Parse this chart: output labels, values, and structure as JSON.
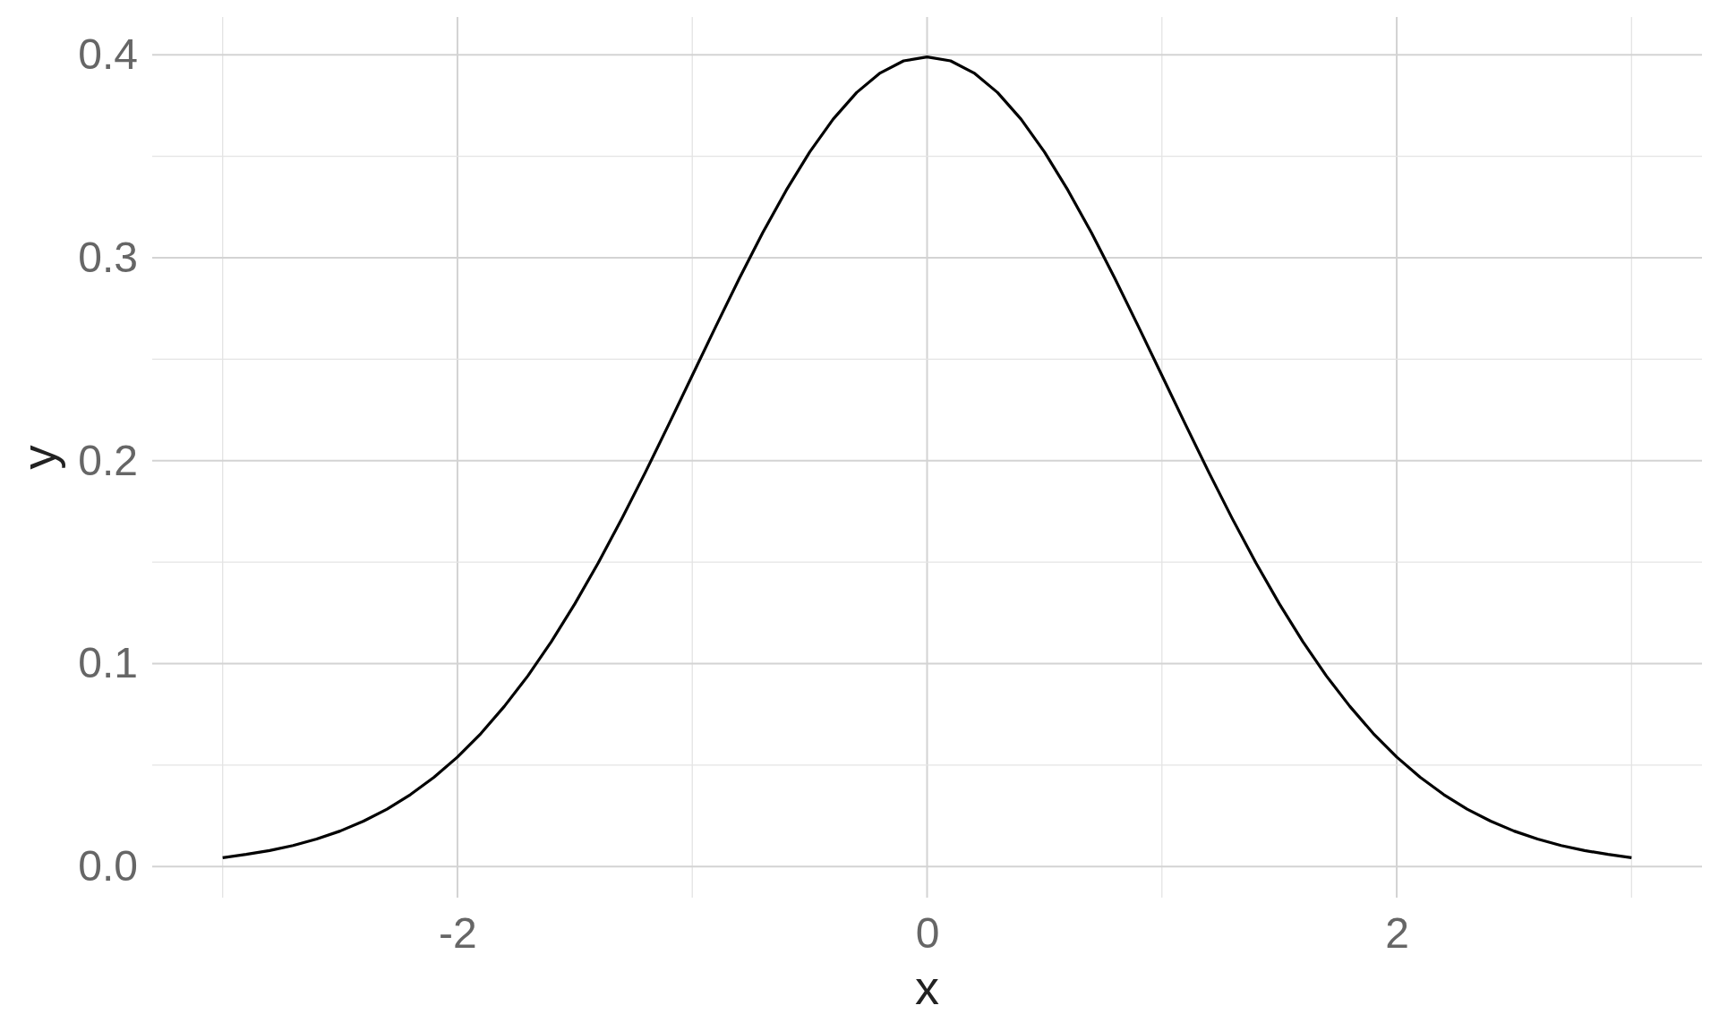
{
  "chart_data": {
    "type": "line",
    "xlabel": "x",
    "ylabel": "y",
    "x": [
      -3,
      -2.9,
      -2.8,
      -2.7,
      -2.6,
      -2.5,
      -2.4,
      -2.3,
      -2.2,
      -2.1,
      -2,
      -1.9,
      -1.8,
      -1.7,
      -1.6,
      -1.5,
      -1.4,
      -1.3,
      -1.2,
      -1.1,
      -1,
      -0.9,
      -0.8,
      -0.7,
      -0.6,
      -0.5,
      -0.4,
      -0.3,
      -0.2,
      -0.1,
      0,
      0.1,
      0.2,
      0.3,
      0.4,
      0.5,
      0.6,
      0.7,
      0.8,
      0.9,
      1,
      1.1,
      1.2,
      1.3,
      1.4,
      1.5,
      1.6,
      1.7,
      1.8,
      1.9,
      2,
      2.1,
      2.2,
      2.3,
      2.4,
      2.5,
      2.6,
      2.7,
      2.8,
      2.9,
      3
    ],
    "values": [
      0.0044,
      0.006,
      0.0079,
      0.0104,
      0.0136,
      0.0175,
      0.0224,
      0.0283,
      0.0355,
      0.044,
      0.054,
      0.0656,
      0.079,
      0.094,
      0.1109,
      0.1295,
      0.1497,
      0.1714,
      0.1942,
      0.2179,
      0.242,
      0.2661,
      0.2897,
      0.3123,
      0.3332,
      0.3521,
      0.3683,
      0.3814,
      0.391,
      0.397,
      0.3989,
      0.397,
      0.391,
      0.3814,
      0.3683,
      0.3521,
      0.3332,
      0.3123,
      0.2897,
      0.2661,
      0.242,
      0.2179,
      0.1942,
      0.1714,
      0.1497,
      0.1295,
      0.1109,
      0.094,
      0.079,
      0.0656,
      0.054,
      0.044,
      0.0355,
      0.0283,
      0.0224,
      0.0175,
      0.0136,
      0.0104,
      0.0079,
      0.006,
      0.0044
    ],
    "color": "#000000",
    "xlim": [
      -3.3,
      3.3
    ],
    "ylim": [
      -0.0153,
      0.4186
    ],
    "xticks": [
      {
        "value": -3,
        "label": null
      },
      -2,
      {
        "value": -1,
        "label": null
      },
      0,
      {
        "value": 1,
        "label": null
      },
      2,
      {
        "value": 3,
        "label": null
      }
    ],
    "yticks": [
      {
        "value": 0,
        "label": "0.0"
      },
      {
        "value": 0.05,
        "label": null
      },
      0.1,
      {
        "value": 0.15,
        "label": null
      },
      0.2,
      {
        "value": 0.25,
        "label": null
      },
      0.3,
      {
        "value": 0.35,
        "label": null
      },
      0.4
    ],
    "grid": true
  }
}
